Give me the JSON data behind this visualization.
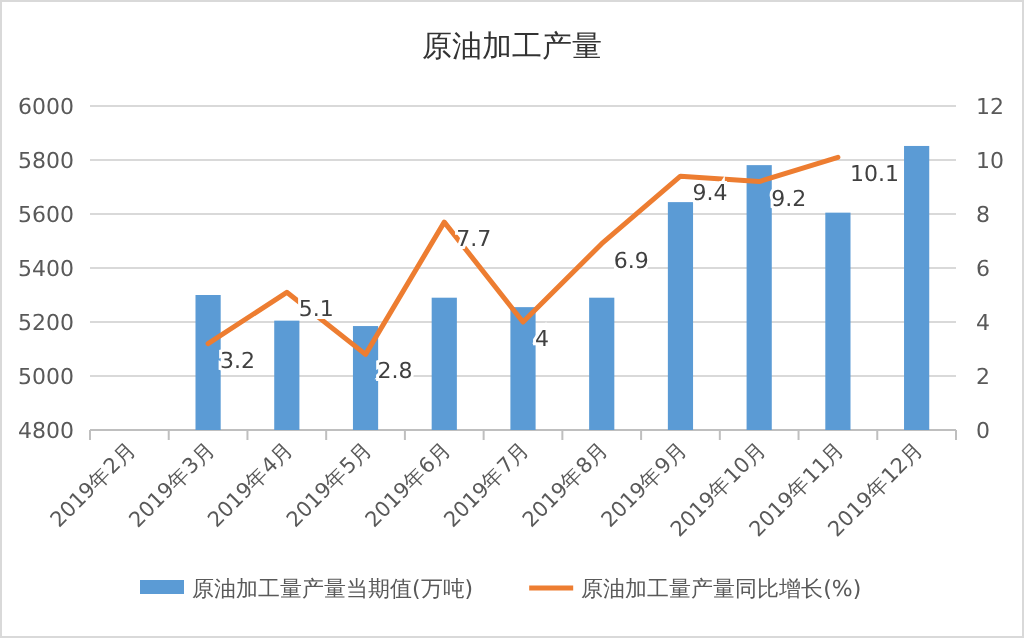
{
  "chart_data": {
    "type": "bar",
    "title": "原油加工产量",
    "categories": [
      "2019年2月",
      "2019年3月",
      "2019年4月",
      "2019年5月",
      "2019年6月",
      "2019年7月",
      "2019年8月",
      "2019年9月",
      "2019年10月",
      "2019年11月",
      "2019年12月"
    ],
    "series": [
      {
        "name": "原油加工量产量当期值(万吨)",
        "color": "#5b9bd5",
        "values": [
          null,
          5300,
          5205,
          5185,
          5290,
          5255,
          5290,
          5644,
          5781,
          5605,
          5852
        ]
      },
      {
        "name": "原油加工量产量同比增长(%)",
        "type": "line",
        "axis": "y2",
        "color": "#ed7d31",
        "values": [
          null,
          3.2,
          5.1,
          2.8,
          7.7,
          4,
          6.9,
          9.4,
          9.2,
          10.1,
          null
        ],
        "value_labels": [
          null,
          "3.2",
          "5.1",
          "2.8",
          "7.7",
          "4",
          "6.9",
          "9.4",
          "9.2",
          "10.1",
          null
        ]
      }
    ],
    "ylim": [
      4800,
      6000
    ],
    "yticks": [
      4800,
      5000,
      5200,
      5400,
      5600,
      5800,
      6000
    ],
    "y2lim": [
      0,
      12
    ],
    "y2ticks": [
      0,
      2,
      4,
      6,
      8,
      10,
      12
    ],
    "grid": "y",
    "legend": "bottom",
    "marker": "none"
  }
}
